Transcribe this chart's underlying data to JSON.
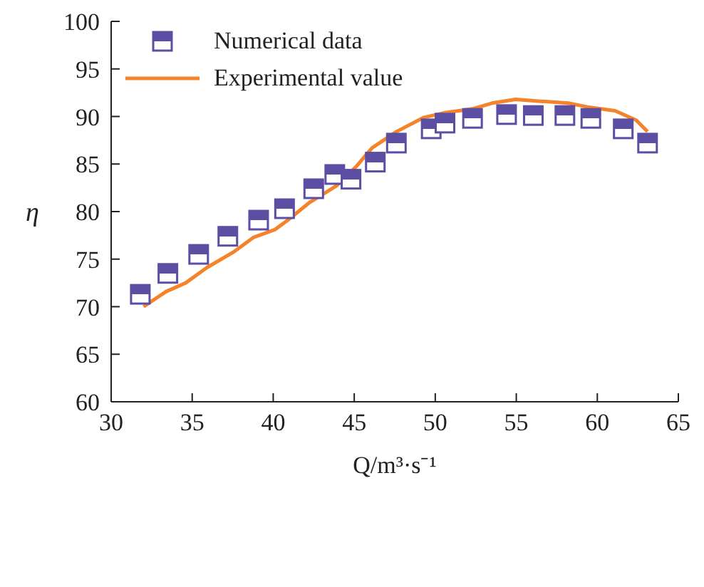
{
  "chart_data": {
    "type": "scatter",
    "xlabel": "Q/m³·s⁻¹",
    "ylabel": "η",
    "xlim": [
      30,
      65
    ],
    "xticks": [
      30,
      35,
      40,
      45,
      50,
      55,
      60,
      65
    ],
    "ylim": [
      60,
      100
    ],
    "yticks": [
      60,
      65,
      70,
      75,
      80,
      85,
      90,
      95,
      100
    ],
    "grid": false,
    "legend": "top left",
    "series": [
      {
        "name": "Numerical data",
        "marker": "square",
        "color": "#5b4ea3",
        "x": [
          31.8,
          33.5,
          35.4,
          37.2,
          39.1,
          40.7,
          42.5,
          43.8,
          44.8,
          46.3,
          47.6,
          49.75,
          50.6,
          52.3,
          54.4,
          56.05,
          58.0,
          59.6,
          61.6,
          63.1
        ],
        "values": [
          71.3,
          73.5,
          75.5,
          77.4,
          79.1,
          80.3,
          82.4,
          83.9,
          83.4,
          85.2,
          87.2,
          88.7,
          89.3,
          89.8,
          90.2,
          90.1,
          90.1,
          89.8,
          88.7,
          87.2
        ]
      },
      {
        "name": "Experimental value",
        "type": "line",
        "marker": "none",
        "line_style": "solid",
        "color": "#f5832a",
        "x": [
          32.0,
          33.4,
          34.6,
          35.9,
          37.6,
          38.8,
          40.1,
          40.9,
          42.2,
          43.9,
          45.1,
          46.1,
          47.6,
          49.3,
          50.6,
          52.3,
          53.5,
          54.96,
          56.5,
          58.2,
          59.4,
          61.1,
          62.4,
          63.1
        ],
        "values": [
          70.0,
          71.6,
          72.5,
          74.1,
          75.8,
          77.3,
          78.1,
          79.1,
          80.9,
          82.7,
          84.7,
          86.7,
          88.4,
          89.9,
          90.4,
          90.8,
          91.4,
          91.8,
          91.6,
          91.4,
          91.0,
          90.6,
          89.6,
          88.4
        ]
      }
    ]
  }
}
